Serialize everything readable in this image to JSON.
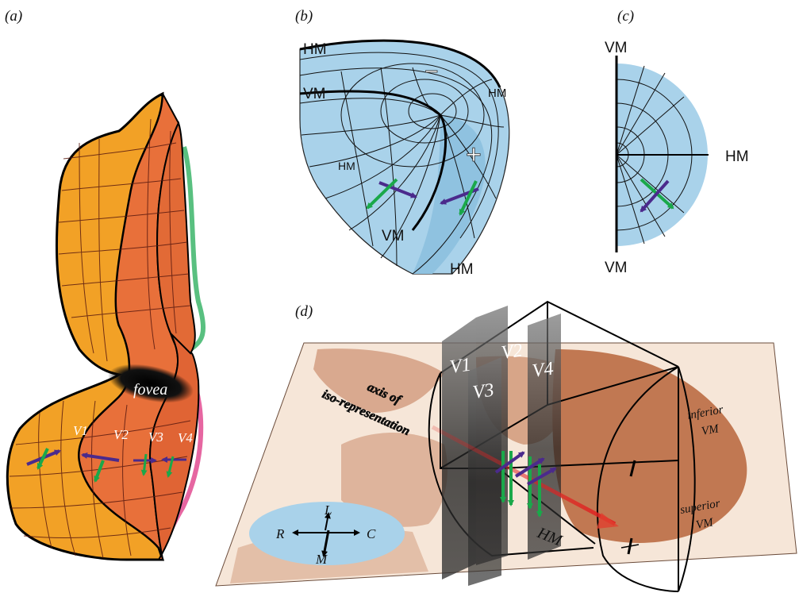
{
  "panels": {
    "a": {
      "label": "(a)",
      "fovea": "fovea",
      "areas": [
        "V1",
        "V2",
        "V3",
        "V4"
      ]
    },
    "b": {
      "label": "(b)",
      "hm_top": "HM",
      "vm_left": "VM",
      "minus": "−",
      "hm_right": "HM",
      "plus": "+",
      "hm_inner": "HM",
      "vm_bottom": "VM",
      "hm_bottom": "HM"
    },
    "c": {
      "label": "(c)",
      "vm_top": "VM",
      "hm_right": "HM",
      "vm_bottom": "VM"
    },
    "d": {
      "label": "(d)",
      "axis_line1": "axis of",
      "axis_line2": "iso-representation",
      "areas": [
        "V1",
        "V2",
        "V3",
        "V4"
      ],
      "inferior": "inferior",
      "inferior_vm": "VM",
      "superior": "superior",
      "superior_vm": "VM",
      "hm": "HM",
      "compass": {
        "L": "L",
        "R": "R",
        "C": "C",
        "M": "M"
      }
    }
  },
  "colors": {
    "field_blue": "#a9d2ea",
    "v1_orange": "#f2a126",
    "v2_orange": "#e8703a",
    "arrow_green": "#1aa84a",
    "arrow_purple": "#4b2a8c",
    "tissue_brown": "#b8653a"
  }
}
